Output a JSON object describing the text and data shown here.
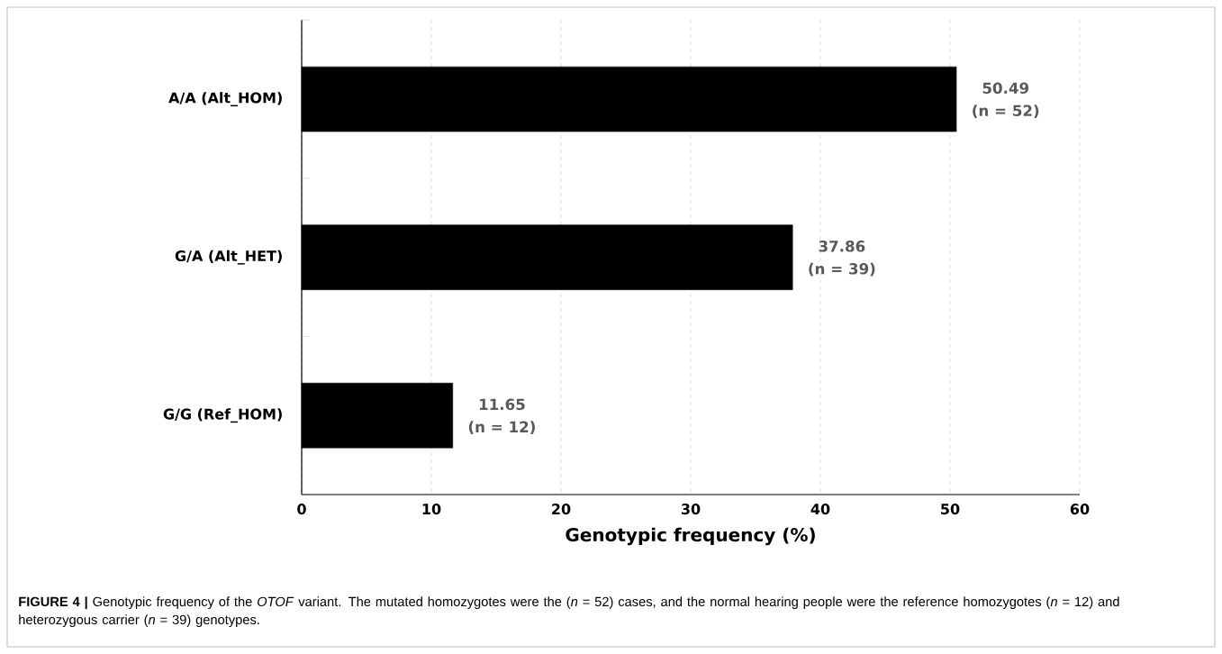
{
  "chart_data": {
    "type": "bar",
    "orientation": "horizontal",
    "categories": [
      "A/A (Alt_HOM)",
      "G/A (Alt_HET)",
      "G/G (Ref_HOM)"
    ],
    "values": [
      50.49,
      37.86,
      11.65
    ],
    "color": "#000000",
    "xlim": [
      0,
      60
    ],
    "xticks": [
      0,
      10,
      20,
      30,
      40,
      50,
      60
    ],
    "grid": "x",
    "xlabel": "Genotypic frequency (%)",
    "data_labels": true,
    "annotations": [
      {
        "text": "(n = 52)",
        "x": 50.49,
        "y": "A/A (Alt_HOM)"
      },
      {
        "text": "(n = 39)",
        "x": 37.86,
        "y": "G/A (Alt_HET)"
      },
      {
        "text": "(n = 12)",
        "x": 11.65,
        "y": "G/G (Ref_HOM)"
      },
      "**FIGURE 4 |** Genotypic frequency of the *OTOF* variant. The mutated homozygotes were the (*n* = 52) cases, and the normal hearing people were the reference homozygotes (*n* = 12) and heterozygous carrier (*n* = 39) genotypes."
    ]
  }
}
